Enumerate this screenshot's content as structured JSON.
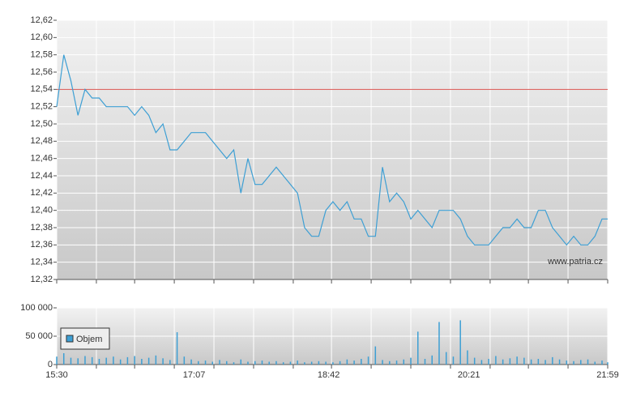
{
  "chart_data": [
    {
      "type": "line",
      "color": "#3d9fd4",
      "x": [
        "15:30",
        "15:35",
        "15:40",
        "15:45",
        "15:50",
        "15:55",
        "16:00",
        "16:05",
        "16:10",
        "16:15",
        "16:20",
        "16:25",
        "16:30",
        "16:35",
        "16:40",
        "16:45",
        "16:50",
        "16:55",
        "17:00",
        "17:05",
        "17:10",
        "17:15",
        "17:20",
        "17:25",
        "17:30",
        "17:35",
        "17:40",
        "17:45",
        "17:50",
        "17:55",
        "18:00",
        "18:05",
        "18:10",
        "18:15",
        "18:20",
        "18:25",
        "18:30",
        "18:35",
        "18:40",
        "18:45",
        "18:50",
        "18:55",
        "19:00",
        "19:05",
        "19:10",
        "19:15",
        "19:20",
        "19:25",
        "19:30",
        "19:35",
        "19:40",
        "19:45",
        "19:50",
        "19:55",
        "20:00",
        "20:05",
        "20:10",
        "20:15",
        "20:20",
        "20:25",
        "20:30",
        "20:35",
        "20:40",
        "20:45",
        "20:50",
        "20:55",
        "21:00",
        "21:05",
        "21:10",
        "21:15",
        "21:20",
        "21:25",
        "21:30",
        "21:35",
        "21:40",
        "21:45",
        "21:50",
        "21:55",
        "21:59"
      ],
      "values": [
        12.52,
        12.58,
        12.55,
        12.51,
        12.54,
        12.53,
        12.53,
        12.52,
        12.52,
        12.52,
        12.52,
        12.51,
        12.52,
        12.51,
        12.49,
        12.5,
        12.47,
        12.47,
        12.48,
        12.49,
        12.49,
        12.49,
        12.48,
        12.47,
        12.46,
        12.47,
        12.42,
        12.46,
        12.43,
        12.43,
        12.44,
        12.45,
        12.44,
        12.43,
        12.42,
        12.38,
        12.37,
        12.37,
        12.4,
        12.41,
        12.4,
        12.41,
        12.39,
        12.39,
        12.37,
        12.37,
        12.45,
        12.41,
        12.42,
        12.41,
        12.39,
        12.4,
        12.39,
        12.38,
        12.4,
        12.4,
        12.4,
        12.39,
        12.37,
        12.36,
        12.36,
        12.36,
        12.37,
        12.38,
        12.38,
        12.39,
        12.38,
        12.38,
        12.4,
        12.4,
        12.38,
        12.37,
        12.36,
        12.37,
        12.36,
        12.36,
        12.37,
        12.39,
        12.39
      ],
      "reference_line": 12.54,
      "reference_color": "#d9534f",
      "xlim": [
        "15:30",
        "21:59"
      ],
      "xgrid": [
        "15:30",
        "15:58",
        "16:25",
        "16:53",
        "17:21",
        "17:49",
        "18:17",
        "18:44",
        "19:12",
        "19:40",
        "20:08",
        "20:36",
        "21:03",
        "21:31",
        "21:59"
      ],
      "ylim": [
        12.32,
        12.62
      ],
      "yticks": [
        {
          "value": 12.32,
          "label": "12,32"
        },
        {
          "value": 12.34,
          "label": "12,34"
        },
        {
          "value": 12.36,
          "label": "12,36"
        },
        {
          "value": 12.38,
          "label": "12,38"
        },
        {
          "value": 12.4,
          "label": "12,40"
        },
        {
          "value": 12.42,
          "label": "12,42"
        },
        {
          "value": 12.44,
          "label": "12,44"
        },
        {
          "value": 12.46,
          "label": "12,46"
        },
        {
          "value": 12.48,
          "label": "12,48"
        },
        {
          "value": 12.5,
          "label": "12,50"
        },
        {
          "value": 12.52,
          "label": "12,52"
        },
        {
          "value": 12.54,
          "label": "12,54"
        },
        {
          "value": 12.56,
          "label": "12,56"
        },
        {
          "value": 12.58,
          "label": "12,58"
        },
        {
          "value": 12.6,
          "label": "12,60"
        },
        {
          "value": 12.62,
          "label": "12,62"
        }
      ],
      "watermark": "www.patria.cz",
      "grid": true
    },
    {
      "type": "bar",
      "x": [
        "15:30",
        "15:35",
        "15:40",
        "15:45",
        "15:50",
        "15:55",
        "16:00",
        "16:05",
        "16:10",
        "16:15",
        "16:20",
        "16:25",
        "16:30",
        "16:35",
        "16:40",
        "16:45",
        "16:50",
        "16:55",
        "17:00",
        "17:05",
        "17:10",
        "17:15",
        "17:20",
        "17:25",
        "17:30",
        "17:35",
        "17:40",
        "17:45",
        "17:50",
        "17:55",
        "18:00",
        "18:05",
        "18:10",
        "18:15",
        "18:20",
        "18:25",
        "18:30",
        "18:35",
        "18:40",
        "18:45",
        "18:50",
        "18:55",
        "19:00",
        "19:05",
        "19:10",
        "19:15",
        "19:20",
        "19:25",
        "19:30",
        "19:35",
        "19:40",
        "19:45",
        "19:50",
        "19:55",
        "20:00",
        "20:05",
        "20:10",
        "20:15",
        "20:20",
        "20:25",
        "20:30",
        "20:35",
        "20:40",
        "20:45",
        "20:50",
        "20:55",
        "21:00",
        "21:05",
        "21:10",
        "21:15",
        "21:20",
        "21:25",
        "21:30",
        "21:35",
        "21:40",
        "21:45",
        "21:50",
        "21:55",
        "21:59"
      ],
      "series": [
        {
          "name": "Objem",
          "color": "#3d9fd4",
          "values": [
            14000,
            20000,
            12000,
            11000,
            15000,
            13000,
            10000,
            12000,
            14000,
            9000,
            13000,
            15000,
            10000,
            12000,
            16000,
            11000,
            8000,
            57000,
            14000,
            9000,
            6000,
            7000,
            5000,
            8000,
            6000,
            4000,
            9000,
            5000,
            6000,
            7000,
            5000,
            6000,
            4000,
            5000,
            7000,
            4000,
            5000,
            6000,
            5000,
            4000,
            6000,
            9000,
            7000,
            10000,
            14000,
            32000,
            8000,
            6000,
            7000,
            9000,
            12000,
            58000,
            10000,
            16000,
            75000,
            22000,
            14000,
            78000,
            25000,
            12000,
            8000,
            10000,
            15000,
            9000,
            11000,
            14000,
            12000,
            9000,
            10000,
            8000,
            13000,
            9000,
            7000,
            6000,
            8000,
            9000,
            5000,
            7000,
            4000
          ]
        }
      ],
      "xlim": [
        "15:30",
        "21:59"
      ],
      "xticks": [
        "15:30",
        "17:07",
        "18:42",
        "20:21",
        "21:59"
      ],
      "xgrid": [
        "15:30",
        "15:58",
        "16:25",
        "16:53",
        "17:21",
        "17:49",
        "18:17",
        "18:44",
        "19:12",
        "19:40",
        "20:08",
        "20:36",
        "21:03",
        "21:31",
        "21:59"
      ],
      "ylim": [
        0,
        100000
      ],
      "yticks": [
        0,
        {
          "value": 50000,
          "label": "50 000"
        },
        {
          "value": 100000,
          "label": "100 000"
        }
      ],
      "legend": "top-left",
      "grid": true
    }
  ]
}
